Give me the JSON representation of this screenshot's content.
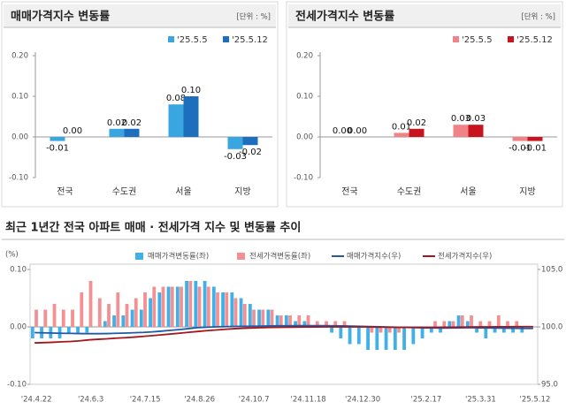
{
  "chart_data": [
    {
      "type": "bar",
      "title": "매매가격지수 변동률",
      "unit": "[단위 : %]",
      "categories": [
        "전국",
        "수도권",
        "서울",
        "지방"
      ],
      "series": [
        {
          "name": "'25.5.5",
          "color": "#3aa6e0",
          "values": [
            -0.01,
            0.02,
            0.08,
            -0.03
          ],
          "value_labels": [
            "-0.01",
            "0.02",
            "0.08",
            "-0.03"
          ]
        },
        {
          "name": "'25.5.12",
          "color": "#1d6fbe",
          "values": [
            0,
            0.02,
            0.1,
            -0.02
          ],
          "value_labels": [
            "0.00",
            "0.02",
            "0.10",
            "-0.02"
          ]
        }
      ],
      "ylim": [
        -0.1,
        0.2
      ],
      "yticks": [
        {
          "value": -0.1,
          "label": "-0.10"
        },
        {
          "value": 0,
          "label": "0.00"
        },
        {
          "value": 0.1,
          "label": "0.10"
        },
        {
          "value": 0.2,
          "label": "0.20"
        }
      ],
      "grid": false,
      "legend": "top-right"
    },
    {
      "type": "bar",
      "title": "전세가격지수 변동률",
      "unit": "[단위 : %]",
      "categories": [
        "전국",
        "수도권",
        "서울",
        "지방"
      ],
      "series": [
        {
          "name": "'25.5.5",
          "color": "#f08387",
          "values": [
            0,
            0.01,
            0.03,
            -0.01
          ],
          "value_labels": [
            "0.00",
            "0.01",
            "0.03",
            "-0.01"
          ]
        },
        {
          "name": "'25.5.12",
          "color": "#c8141e",
          "values": [
            0,
            0.02,
            0.03,
            -0.01
          ],
          "value_labels": [
            "0.00",
            "0.02",
            "0.03",
            "-0.01"
          ]
        }
      ],
      "ylim": [
        -0.1,
        0.2
      ],
      "yticks": [
        {
          "value": -0.1,
          "label": "-0.10"
        },
        {
          "value": 0,
          "label": "0.00"
        },
        {
          "value": 0.1,
          "label": "0.10"
        },
        {
          "value": 0.2,
          "label": "0.20"
        }
      ],
      "grid": false,
      "legend": "top-right"
    },
    {
      "type": "combo",
      "title": "최근 1년간 전국 아파트 매매 · 전세가격 지수 및 변동률 추이",
      "ylabel": "(%)",
      "categories": [
        "'24.4.22",
        null,
        null,
        null,
        null,
        null,
        "'24.6.3",
        null,
        null,
        null,
        null,
        null,
        "'24.7.15",
        null,
        null,
        null,
        null,
        null,
        "'24.8.26",
        null,
        null,
        null,
        null,
        null,
        "'24.10.7",
        null,
        null,
        null,
        null,
        null,
        "'24.11.18",
        null,
        null,
        null,
        null,
        null,
        "'24.12.30",
        null,
        null,
        null,
        null,
        null,
        null,
        "'25.2.17",
        null,
        null,
        null,
        null,
        null,
        "'25.3.31",
        null,
        null,
        null,
        null,
        null,
        "'25.5.12"
      ],
      "series": [
        {
          "name": "매매가격변동률(좌)",
          "type": "bar",
          "color": "#3fb0e8",
          "values": [
            -0.02,
            -0.02,
            -0.02,
            -0.02,
            -0.01,
            -0.01,
            -0.01,
            0.0,
            0.01,
            0.02,
            0.02,
            0.03,
            0.03,
            0.05,
            0.06,
            0.07,
            0.07,
            0.08,
            0.08,
            0.08,
            0.07,
            0.06,
            0.06,
            0.05,
            0.04,
            0.03,
            0.03,
            0.02,
            0.02,
            0.01,
            0.01,
            0.0,
            0.0,
            -0.01,
            -0.02,
            -0.03,
            -0.03,
            -0.04,
            -0.04,
            -0.04,
            -0.04,
            -0.04,
            -0.03,
            -0.02,
            -0.01,
            -0.01,
            0.01,
            0.02,
            0.01,
            -0.01,
            -0.02,
            -0.01,
            -0.01,
            -0.01,
            -0.01,
            0.0
          ]
        },
        {
          "name": "전세가격변동률(좌)",
          "type": "bar",
          "color": "#f29094",
          "values": [
            0.03,
            0.03,
            0.04,
            0.03,
            0.03,
            0.06,
            0.08,
            0.05,
            0.04,
            0.06,
            0.04,
            0.05,
            0.06,
            0.07,
            0.07,
            0.07,
            0.07,
            0.08,
            0.07,
            0.07,
            0.06,
            0.06,
            0.05,
            0.04,
            0.03,
            0.03,
            0.03,
            0.02,
            0.02,
            0.02,
            0.02,
            0.01,
            0.01,
            0.01,
            0.01,
            0.0,
            0.0,
            -0.01,
            -0.01,
            -0.01,
            -0.01,
            0.0,
            0.0,
            0.0,
            0.01,
            0.01,
            0.01,
            0.02,
            0.02,
            0.01,
            0.01,
            0.02,
            0.01,
            0.01,
            0.0,
            0.0
          ]
        },
        {
          "name": "매매가격지수(우)",
          "type": "line",
          "axis": "y2",
          "color": "#1f5aa6",
          "values": [
            99.5,
            99.48,
            99.46,
            99.44,
            99.43,
            99.42,
            99.41,
            99.41,
            99.42,
            99.44,
            99.46,
            99.49,
            99.52,
            99.57,
            99.63,
            99.7,
            99.77,
            99.85,
            99.93,
            99.97,
            100.0,
            100.02,
            100.04,
            100.05,
            100.06,
            100.07,
            100.08,
            100.09,
            100.09,
            100.1,
            100.1,
            100.1,
            100.1,
            100.09,
            100.08,
            100.07,
            100.05,
            100.03,
            100.01,
            99.99,
            99.97,
            99.95,
            99.93,
            99.92,
            99.91,
            99.9,
            99.91,
            99.92,
            99.93,
            99.92,
            99.91,
            99.9,
            99.89,
            99.88,
            99.87,
            99.87
          ]
        },
        {
          "name": "전세가격지수(우)",
          "type": "line",
          "axis": "y2",
          "color": "#a3161c",
          "values": [
            98.6,
            98.63,
            98.66,
            98.7,
            98.73,
            98.79,
            98.87,
            98.92,
            98.96,
            99.02,
            99.06,
            99.11,
            99.17,
            99.24,
            99.31,
            99.38,
            99.45,
            99.53,
            99.6,
            99.67,
            99.73,
            99.79,
            99.84,
            99.88,
            99.91,
            99.93,
            99.95,
            99.96,
            99.97,
            99.98,
            99.99,
            99.99,
            100.0,
            100.0,
            100.0,
            100.0,
            100.0,
            99.99,
            99.98,
            99.97,
            99.96,
            99.96,
            99.96,
            99.96,
            99.96,
            99.97,
            99.97,
            99.98,
            99.99,
            100.0,
            100.0,
            100.01,
            100.01,
            100.02,
            100.02,
            100.02
          ]
        }
      ],
      "ylim": [
        -0.1,
        0.1
      ],
      "yticks": [
        {
          "value": -0.1,
          "label": "-0.10"
        },
        {
          "value": 0,
          "label": "0.00"
        },
        {
          "value": 0.1,
          "label": "0.10"
        }
      ],
      "y2lim": [
        95,
        105
      ],
      "y2ticks": [
        {
          "value": 95,
          "label": "95.0"
        },
        {
          "value": 100,
          "label": "100.0"
        },
        {
          "value": 105,
          "label": "105.0"
        }
      ],
      "grid": false,
      "legend": "top"
    }
  ]
}
